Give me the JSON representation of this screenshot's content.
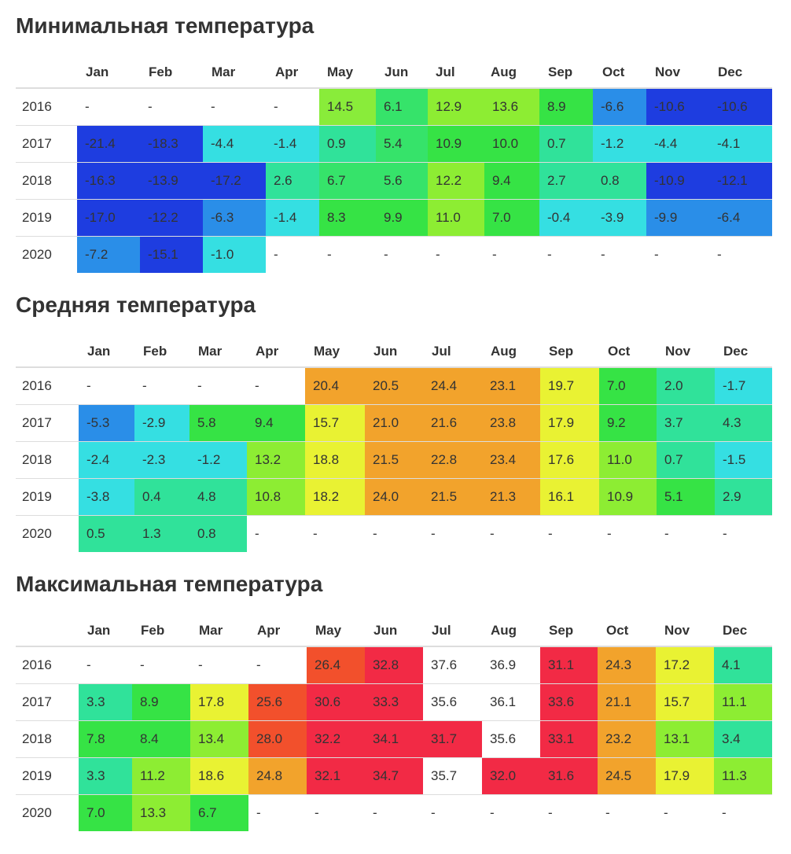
{
  "months": [
    "Jan",
    "Feb",
    "Mar",
    "Apr",
    "May",
    "Jun",
    "Jul",
    "Aug",
    "Sep",
    "Oct",
    "Nov",
    "Dec"
  ],
  "tables": [
    {
      "title": "Минимальная температура",
      "rows": [
        {
          "year": "2016",
          "values": [
            "-",
            "-",
            "-",
            "-",
            "14.5",
            "6.1",
            "12.9",
            "13.6",
            "8.9",
            "-6.6",
            "-10.6",
            "-10.6"
          ],
          "colors": [
            "",
            "",
            "",
            "",
            "#89ec3a",
            "#36e36a",
            "#8ded33",
            "#8ded33",
            "#36e345",
            "#2a8ee8",
            "#1e3de0",
            "#1e3de0"
          ]
        },
        {
          "year": "2017",
          "values": [
            "-21.4",
            "-18.3",
            "-4.4",
            "-1.4",
            "0.9",
            "5.4",
            "10.9",
            "10.0",
            "0.7",
            "-1.2",
            "-4.4",
            "-4.1"
          ],
          "colors": [
            "#1e3de0",
            "#1e3de0",
            "#35dfe2",
            "#35dfe2",
            "#30e29a",
            "#36e36a",
            "#36e345",
            "#36e345",
            "#30e29a",
            "#35dfe2",
            "#35dfe2",
            "#35dfe2"
          ]
        },
        {
          "year": "2018",
          "values": [
            "-16.3",
            "-13.9",
            "-17.2",
            "2.6",
            "6.7",
            "5.6",
            "12.2",
            "9.4",
            "2.7",
            "0.8",
            "-10.9",
            "-12.1"
          ],
          "colors": [
            "#1e3de0",
            "#1e3de0",
            "#1e3de0",
            "#30e29a",
            "#36e36a",
            "#36e36a",
            "#8ded33",
            "#36e345",
            "#30e29a",
            "#30e29a",
            "#1e3de0",
            "#1e3de0"
          ]
        },
        {
          "year": "2019",
          "values": [
            "-17.0",
            "-12.2",
            "-6.3",
            "-1.4",
            "8.3",
            "9.9",
            "11.0",
            "7.0",
            "-0.4",
            "-3.9",
            "-9.9",
            "-6.4"
          ],
          "colors": [
            "#1e3de0",
            "#1e3de0",
            "#2a8ee8",
            "#35dfe2",
            "#36e345",
            "#36e345",
            "#8ded33",
            "#36e345",
            "#35dfe2",
            "#35dfe2",
            "#2a8ee8",
            "#2a8ee8"
          ]
        },
        {
          "year": "2020",
          "values": [
            "-7.2",
            "-15.1",
            "-1.0",
            "-",
            "-",
            "-",
            "-",
            "-",
            "-",
            "-",
            "-",
            "-"
          ],
          "colors": [
            "#2a8ee8",
            "#1e3de0",
            "#35dfe2",
            "",
            "",
            "",
            "",
            "",
            "",
            "",
            "",
            ""
          ]
        }
      ]
    },
    {
      "title": "Средняя температура",
      "rows": [
        {
          "year": "2016",
          "values": [
            "-",
            "-",
            "-",
            "-",
            "20.4",
            "20.5",
            "24.4",
            "23.1",
            "19.7",
            "7.0",
            "2.0",
            "-1.7"
          ],
          "colors": [
            "",
            "",
            "",
            "",
            "#f2a32c",
            "#f2a32c",
            "#f2a32c",
            "#f2a32c",
            "#e9f233",
            "#36e345",
            "#30e29a",
            "#35dfe2"
          ]
        },
        {
          "year": "2017",
          "values": [
            "-5.3",
            "-2.9",
            "5.8",
            "9.4",
            "15.7",
            "21.0",
            "21.6",
            "23.8",
            "17.9",
            "9.2",
            "3.7",
            "4.3"
          ],
          "colors": [
            "#2a8ee8",
            "#35dfe2",
            "#36e345",
            "#36e345",
            "#e9f233",
            "#f2a32c",
            "#f2a32c",
            "#f2a32c",
            "#e9f233",
            "#36e345",
            "#30e29a",
            "#30e29a"
          ]
        },
        {
          "year": "2018",
          "values": [
            "-2.4",
            "-2.3",
            "-1.2",
            "13.2",
            "18.8",
            "21.5",
            "22.8",
            "23.4",
            "17.6",
            "11.0",
            "0.7",
            "-1.5"
          ],
          "colors": [
            "#35dfe2",
            "#35dfe2",
            "#35dfe2",
            "#8ded33",
            "#e9f233",
            "#f2a32c",
            "#f2a32c",
            "#f2a32c",
            "#e9f233",
            "#8ded33",
            "#30e29a",
            "#35dfe2"
          ]
        },
        {
          "year": "2019",
          "values": [
            "-3.8",
            "0.4",
            "4.8",
            "10.8",
            "18.2",
            "24.0",
            "21.5",
            "21.3",
            "16.1",
            "10.9",
            "5.1",
            "2.9"
          ],
          "colors": [
            "#35dfe2",
            "#30e29a",
            "#30e29a",
            "#8ded33",
            "#e9f233",
            "#f2a32c",
            "#f2a32c",
            "#f2a32c",
            "#e9f233",
            "#8ded33",
            "#36e345",
            "#30e29a"
          ]
        },
        {
          "year": "2020",
          "values": [
            "0.5",
            "1.3",
            "0.8",
            "-",
            "-",
            "-",
            "-",
            "-",
            "-",
            "-",
            "-",
            "-"
          ],
          "colors": [
            "#30e29a",
            "#30e29a",
            "#30e29a",
            "",
            "",
            "",
            "",
            "",
            "",
            "",
            "",
            ""
          ]
        }
      ]
    },
    {
      "title": "Максимальная температура",
      "rows": [
        {
          "year": "2016",
          "values": [
            "-",
            "-",
            "-",
            "-",
            "26.4",
            "32.8",
            "37.6",
            "36.9",
            "31.1",
            "24.3",
            "17.2",
            "4.1"
          ],
          "colors": [
            "",
            "",
            "",
            "",
            "#f2502c",
            "#f22a45",
            "",
            "",
            "#f22a45",
            "#f2a32c",
            "#e9f233",
            "#30e29a"
          ]
        },
        {
          "year": "2017",
          "values": [
            "3.3",
            "8.9",
            "17.8",
            "25.6",
            "30.6",
            "33.3",
            "35.6",
            "36.1",
            "33.6",
            "21.1",
            "15.7",
            "11.1"
          ],
          "colors": [
            "#30e29a",
            "#36e345",
            "#e9f233",
            "#f2502c",
            "#f22a45",
            "#f22a45",
            "",
            "",
            "#f22a45",
            "#f2a32c",
            "#e9f233",
            "#8ded33"
          ]
        },
        {
          "year": "2018",
          "values": [
            "7.8",
            "8.4",
            "13.4",
            "28.0",
            "32.2",
            "34.1",
            "31.7",
            "35.6",
            "33.1",
            "23.2",
            "13.1",
            "3.4"
          ],
          "colors": [
            "#36e345",
            "#36e345",
            "#8ded33",
            "#f2502c",
            "#f22a45",
            "#f22a45",
            "#f22a45",
            "",
            "#f22a45",
            "#f2a32c",
            "#8ded33",
            "#30e29a"
          ]
        },
        {
          "year": "2019",
          "values": [
            "3.3",
            "11.2",
            "18.6",
            "24.8",
            "32.1",
            "34.7",
            "35.7",
            "32.0",
            "31.6",
            "24.5",
            "17.9",
            "11.3"
          ],
          "colors": [
            "#30e29a",
            "#8ded33",
            "#e9f233",
            "#f2a32c",
            "#f22a45",
            "#f22a45",
            "",
            "#f22a45",
            "#f22a45",
            "#f2a32c",
            "#e9f233",
            "#8ded33"
          ]
        },
        {
          "year": "2020",
          "values": [
            "7.0",
            "13.3",
            "6.7",
            "-",
            "-",
            "-",
            "-",
            "-",
            "-",
            "-",
            "-",
            "-"
          ],
          "colors": [
            "#36e345",
            "#8ded33",
            "#36e345",
            "",
            "",
            "",
            "",
            "",
            "",
            "",
            "",
            ""
          ]
        }
      ]
    }
  ],
  "chart_data": [
    {
      "type": "heatmap",
      "title": "Минимальная температура",
      "x": [
        "Jan",
        "Feb",
        "Mar",
        "Apr",
        "May",
        "Jun",
        "Jul",
        "Aug",
        "Sep",
        "Oct",
        "Nov",
        "Dec"
      ],
      "y": [
        "2016",
        "2017",
        "2018",
        "2019",
        "2020"
      ],
      "values": [
        [
          null,
          null,
          null,
          null,
          14.5,
          6.1,
          12.9,
          13.6,
          8.9,
          -6.6,
          -10.6,
          -10.6
        ],
        [
          -21.4,
          -18.3,
          -4.4,
          -1.4,
          0.9,
          5.4,
          10.9,
          10.0,
          0.7,
          -1.2,
          -4.4,
          -4.1
        ],
        [
          -16.3,
          -13.9,
          -17.2,
          2.6,
          6.7,
          5.6,
          12.2,
          9.4,
          2.7,
          0.8,
          -10.9,
          -12.1
        ],
        [
          -17.0,
          -12.2,
          -6.3,
          -1.4,
          8.3,
          9.9,
          11.0,
          7.0,
          -0.4,
          -3.9,
          -9.9,
          -6.4
        ],
        [
          -7.2,
          -15.1,
          -1.0,
          null,
          null,
          null,
          null,
          null,
          null,
          null,
          null,
          null
        ]
      ]
    },
    {
      "type": "heatmap",
      "title": "Средняя температура",
      "x": [
        "Jan",
        "Feb",
        "Mar",
        "Apr",
        "May",
        "Jun",
        "Jul",
        "Aug",
        "Sep",
        "Oct",
        "Nov",
        "Dec"
      ],
      "y": [
        "2016",
        "2017",
        "2018",
        "2019",
        "2020"
      ],
      "values": [
        [
          null,
          null,
          null,
          null,
          20.4,
          20.5,
          24.4,
          23.1,
          19.7,
          7.0,
          2.0,
          -1.7
        ],
        [
          -5.3,
          -2.9,
          5.8,
          9.4,
          15.7,
          21.0,
          21.6,
          23.8,
          17.9,
          9.2,
          3.7,
          4.3
        ],
        [
          -2.4,
          -2.3,
          -1.2,
          13.2,
          18.8,
          21.5,
          22.8,
          23.4,
          17.6,
          11.0,
          0.7,
          -1.5
        ],
        [
          -3.8,
          0.4,
          4.8,
          10.8,
          18.2,
          24.0,
          21.5,
          21.3,
          16.1,
          10.9,
          5.1,
          2.9
        ],
        [
          0.5,
          1.3,
          0.8,
          null,
          null,
          null,
          null,
          null,
          null,
          null,
          null,
          null
        ]
      ]
    },
    {
      "type": "heatmap",
      "title": "Максимальная температура",
      "x": [
        "Jan",
        "Feb",
        "Mar",
        "Apr",
        "May",
        "Jun",
        "Jul",
        "Aug",
        "Sep",
        "Oct",
        "Nov",
        "Dec"
      ],
      "y": [
        "2016",
        "2017",
        "2018",
        "2019",
        "2020"
      ],
      "values": [
        [
          null,
          null,
          null,
          null,
          26.4,
          32.8,
          37.6,
          36.9,
          31.1,
          24.3,
          17.2,
          4.1
        ],
        [
          3.3,
          8.9,
          17.8,
          25.6,
          30.6,
          33.3,
          35.6,
          36.1,
          33.6,
          21.1,
          15.7,
          11.1
        ],
        [
          7.8,
          8.4,
          13.4,
          28.0,
          32.2,
          34.1,
          31.7,
          35.6,
          33.1,
          23.2,
          13.1,
          3.4
        ],
        [
          3.3,
          11.2,
          18.6,
          24.8,
          32.1,
          34.7,
          35.7,
          32.0,
          31.6,
          24.5,
          17.9,
          11.3
        ],
        [
          7.0,
          13.3,
          6.7,
          null,
          null,
          null,
          null,
          null,
          null,
          null,
          null,
          null
        ]
      ]
    }
  ]
}
